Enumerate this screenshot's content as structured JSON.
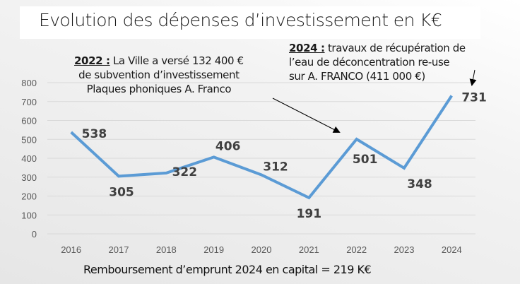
{
  "title": "Evolution des dépenses d’investissement en K€",
  "annotations": {
    "note_2022": {
      "year_label": "2022 :",
      "line1": " La Ville a versé 132 400 €",
      "line2": "de subvention d’investissement",
      "line3": "Plaques phoniques A. Franco"
    },
    "note_2024": {
      "year_label": "2024 :",
      "line1": " travaux de récupération de",
      "line2": "l’eau de déconcentration re-use",
      "line3": "sur A. FRANCO (411 000 €)"
    }
  },
  "footer": "Remboursement d’emprunt 2024 en capital = 219 K€",
  "chart_data": {
    "type": "line",
    "title": "Evolution des dépenses d’investissement en K€",
    "xlabel": "",
    "ylabel": "",
    "categories": [
      "2016",
      "2017",
      "2018",
      "2019",
      "2020",
      "2021",
      "2022",
      "2023",
      "2024"
    ],
    "series": [
      {
        "name": "Dépenses d’investissement (K€)",
        "values": [
          538,
          305,
          322,
          406,
          312,
          191,
          501,
          348,
          731
        ],
        "color": "#5B9BD5"
      }
    ],
    "ylim": [
      0,
      800
    ],
    "yticks": [
      0,
      100,
      200,
      300,
      400,
      500,
      600,
      700,
      800
    ],
    "grid": true,
    "legend": "none",
    "data_labels": [
      "538",
      "305",
      "322",
      "406",
      "312",
      "191",
      "501",
      "348",
      "731"
    ]
  }
}
